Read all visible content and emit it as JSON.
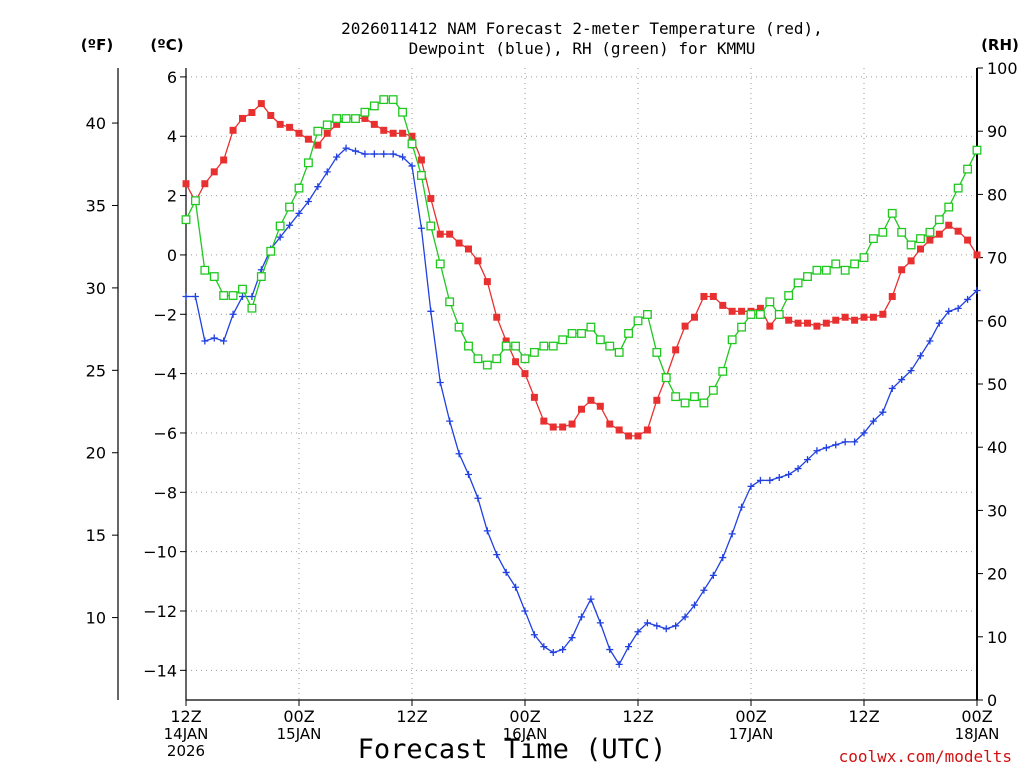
{
  "chart_data": {
    "type": "line",
    "title_lines": [
      "2026011412 NAM Forecast 2-meter Temperature (red),",
      "Dewpoint (blue), RH (green) for KMMU"
    ],
    "xlabel": "Forecast Time (UTC)",
    "credit": "coolwx.com/modelts",
    "units": {
      "fahrenheit": "(ºF)",
      "celsius": "(ºC)",
      "rh": "(RH)"
    },
    "x_range_hours": [
      0,
      84
    ],
    "ylim_celsius": [
      -15,
      6.3
    ],
    "ylim_fahrenheit": [
      5,
      43.34
    ],
    "ylim_rh": [
      0,
      100
    ],
    "grid": true,
    "x_ticks": [
      {
        "hour": 0,
        "lines": [
          "12Z",
          "14JAN",
          "2026"
        ]
      },
      {
        "hour": 12,
        "lines": [
          "00Z",
          "15JAN"
        ]
      },
      {
        "hour": 24,
        "lines": [
          "12Z"
        ]
      },
      {
        "hour": 36,
        "lines": [
          "00Z",
          "16JAN"
        ]
      },
      {
        "hour": 48,
        "lines": [
          "12Z"
        ]
      },
      {
        "hour": 60,
        "lines": [
          "00Z",
          "17JAN"
        ]
      },
      {
        "hour": 72,
        "lines": [
          "12Z"
        ]
      },
      {
        "hour": 84,
        "lines": [
          "00Z",
          "18JAN"
        ]
      }
    ],
    "y_ticks_celsius": [
      {
        "value": 6,
        "label": "6"
      },
      {
        "value": 4,
        "label": "4"
      },
      {
        "value": 2,
        "label": "2"
      },
      {
        "value": 0,
        "label": "0"
      },
      {
        "value": -2,
        "label": "−2"
      },
      {
        "value": -4,
        "label": "−4"
      },
      {
        "value": -6,
        "label": "−6"
      },
      {
        "value": -8,
        "label": "−8"
      },
      {
        "value": -10,
        "label": "−10"
      },
      {
        "value": -12,
        "label": "−12"
      },
      {
        "value": -14,
        "label": "−14"
      }
    ],
    "y_ticks_fahrenheit": [
      {
        "value": 40,
        "label": "40"
      },
      {
        "value": 35,
        "label": "35"
      },
      {
        "value": 30,
        "label": "30"
      },
      {
        "value": 25,
        "label": "25"
      },
      {
        "value": 20,
        "label": "20"
      },
      {
        "value": 15,
        "label": "15"
      },
      {
        "value": 10,
        "label": "10"
      }
    ],
    "y_ticks_rh": [
      {
        "value": 100,
        "label": "100"
      },
      {
        "value": 90,
        "label": "90"
      },
      {
        "value": 80,
        "label": "80"
      },
      {
        "value": 70,
        "label": "70"
      },
      {
        "value": 60,
        "label": "60"
      },
      {
        "value": 50,
        "label": "50"
      },
      {
        "value": 40,
        "label": "40"
      },
      {
        "value": 30,
        "label": "30"
      },
      {
        "value": 20,
        "label": "20"
      },
      {
        "value": 10,
        "label": "10"
      },
      {
        "value": 0,
        "label": "0"
      }
    ],
    "series": [
      {
        "name": "2-meter Temperature",
        "axis": "celsius",
        "color": "#e83030",
        "marker": "filled-square",
        "points": [
          [
            0,
            2.4
          ],
          [
            1,
            1.8
          ],
          [
            2,
            2.4
          ],
          [
            3,
            2.8
          ],
          [
            4,
            3.2
          ],
          [
            5,
            4.2
          ],
          [
            6,
            4.6
          ],
          [
            7,
            4.8
          ],
          [
            8,
            5.1
          ],
          [
            9,
            4.7
          ],
          [
            10,
            4.4
          ],
          [
            11,
            4.3
          ],
          [
            12,
            4.1
          ],
          [
            13,
            3.9
          ],
          [
            14,
            3.7
          ],
          [
            15,
            4.1
          ],
          [
            16,
            4.4
          ],
          [
            17,
            4.6
          ],
          [
            18,
            4.6
          ],
          [
            19,
            4.6
          ],
          [
            20,
            4.4
          ],
          [
            21,
            4.2
          ],
          [
            22,
            4.1
          ],
          [
            23,
            4.1
          ],
          [
            24,
            4.0
          ],
          [
            25,
            3.2
          ],
          [
            26,
            1.9
          ],
          [
            27,
            0.7
          ],
          [
            28,
            0.7
          ],
          [
            29,
            0.4
          ],
          [
            30,
            0.2
          ],
          [
            31,
            -0.2
          ],
          [
            32,
            -0.9
          ],
          [
            33,
            -2.1
          ],
          [
            34,
            -2.9
          ],
          [
            35,
            -3.6
          ],
          [
            36,
            -4.0
          ],
          [
            37,
            -4.8
          ],
          [
            38,
            -5.6
          ],
          [
            39,
            -5.8
          ],
          [
            40,
            -5.8
          ],
          [
            41,
            -5.7
          ],
          [
            42,
            -5.2
          ],
          [
            43,
            -4.9
          ],
          [
            44,
            -5.1
          ],
          [
            45,
            -5.7
          ],
          [
            46,
            -5.9
          ],
          [
            47,
            -6.1
          ],
          [
            48,
            -6.1
          ],
          [
            49,
            -5.9
          ],
          [
            50,
            -4.9
          ],
          [
            51,
            -4.1
          ],
          [
            52,
            -3.2
          ],
          [
            53,
            -2.4
          ],
          [
            54,
            -2.1
          ],
          [
            55,
            -1.4
          ],
          [
            56,
            -1.4
          ],
          [
            57,
            -1.7
          ],
          [
            58,
            -1.9
          ],
          [
            59,
            -1.9
          ],
          [
            60,
            -1.9
          ],
          [
            61,
            -1.8
          ],
          [
            62,
            -2.4
          ],
          [
            63,
            -2.0
          ],
          [
            64,
            -2.2
          ],
          [
            65,
            -2.3
          ],
          [
            66,
            -2.3
          ],
          [
            67,
            -2.4
          ],
          [
            68,
            -2.3
          ],
          [
            69,
            -2.2
          ],
          [
            70,
            -2.1
          ],
          [
            71,
            -2.2
          ],
          [
            72,
            -2.1
          ],
          [
            73,
            -2.1
          ],
          [
            74,
            -2.0
          ],
          [
            75,
            -1.4
          ],
          [
            76,
            -0.5
          ],
          [
            77,
            -0.2
          ],
          [
            78,
            0.2
          ],
          [
            79,
            0.5
          ],
          [
            80,
            0.7
          ],
          [
            81,
            1.0
          ],
          [
            82,
            0.8
          ],
          [
            83,
            0.5
          ],
          [
            84,
            0.0
          ]
        ]
      },
      {
        "name": "Dewpoint",
        "axis": "celsius",
        "color": "#2040e0",
        "marker": "plus",
        "points": [
          [
            0,
            -1.4
          ],
          [
            1,
            -1.4
          ],
          [
            2,
            -2.9
          ],
          [
            3,
            -2.8
          ],
          [
            4,
            -2.9
          ],
          [
            5,
            -2.0
          ],
          [
            6,
            -1.4
          ],
          [
            7,
            -1.4
          ],
          [
            8,
            -0.5
          ],
          [
            9,
            0.2
          ],
          [
            10,
            0.6
          ],
          [
            11,
            1.0
          ],
          [
            12,
            1.4
          ],
          [
            13,
            1.8
          ],
          [
            14,
            2.3
          ],
          [
            15,
            2.8
          ],
          [
            16,
            3.3
          ],
          [
            17,
            3.6
          ],
          [
            18,
            3.5
          ],
          [
            19,
            3.4
          ],
          [
            20,
            3.4
          ],
          [
            21,
            3.4
          ],
          [
            22,
            3.4
          ],
          [
            23,
            3.3
          ],
          [
            24,
            3.0
          ],
          [
            25,
            0.9
          ],
          [
            26,
            -1.9
          ],
          [
            27,
            -4.3
          ],
          [
            28,
            -5.6
          ],
          [
            29,
            -6.7
          ],
          [
            30,
            -7.4
          ],
          [
            31,
            -8.2
          ],
          [
            32,
            -9.3
          ],
          [
            33,
            -10.1
          ],
          [
            34,
            -10.7
          ],
          [
            35,
            -11.2
          ],
          [
            36,
            -12.0
          ],
          [
            37,
            -12.8
          ],
          [
            38,
            -13.2
          ],
          [
            39,
            -13.4
          ],
          [
            40,
            -13.3
          ],
          [
            41,
            -12.9
          ],
          [
            42,
            -12.2
          ],
          [
            43,
            -11.6
          ],
          [
            44,
            -12.4
          ],
          [
            45,
            -13.3
          ],
          [
            46,
            -13.8
          ],
          [
            47,
            -13.2
          ],
          [
            48,
            -12.7
          ],
          [
            49,
            -12.4
          ],
          [
            50,
            -12.5
          ],
          [
            51,
            -12.6
          ],
          [
            52,
            -12.5
          ],
          [
            53,
            -12.2
          ],
          [
            54,
            -11.8
          ],
          [
            55,
            -11.3
          ],
          [
            56,
            -10.8
          ],
          [
            57,
            -10.2
          ],
          [
            58,
            -9.4
          ],
          [
            59,
            -8.5
          ],
          [
            60,
            -7.8
          ],
          [
            61,
            -7.6
          ],
          [
            62,
            -7.6
          ],
          [
            63,
            -7.5
          ],
          [
            64,
            -7.4
          ],
          [
            65,
            -7.2
          ],
          [
            66,
            -6.9
          ],
          [
            67,
            -6.6
          ],
          [
            68,
            -6.5
          ],
          [
            69,
            -6.4
          ],
          [
            70,
            -6.3
          ],
          [
            71,
            -6.3
          ],
          [
            72,
            -6.0
          ],
          [
            73,
            -5.6
          ],
          [
            74,
            -5.3
          ],
          [
            75,
            -4.5
          ],
          [
            76,
            -4.2
          ],
          [
            77,
            -3.9
          ],
          [
            78,
            -3.4
          ],
          [
            79,
            -2.9
          ],
          [
            80,
            -2.3
          ],
          [
            81,
            -1.9
          ],
          [
            82,
            -1.8
          ],
          [
            83,
            -1.5
          ],
          [
            84,
            -1.2
          ]
        ]
      },
      {
        "name": "Relative Humidity",
        "axis": "rh",
        "color": "#20c820",
        "marker": "open-square",
        "points": [
          [
            0,
            76
          ],
          [
            1,
            79
          ],
          [
            2,
            68
          ],
          [
            3,
            67
          ],
          [
            4,
            64
          ],
          [
            5,
            64
          ],
          [
            6,
            65
          ],
          [
            7,
            62
          ],
          [
            8,
            67
          ],
          [
            9,
            71
          ],
          [
            10,
            75
          ],
          [
            11,
            78
          ],
          [
            12,
            81
          ],
          [
            13,
            85
          ],
          [
            14,
            90
          ],
          [
            15,
            91
          ],
          [
            16,
            92
          ],
          [
            17,
            92
          ],
          [
            18,
            92
          ],
          [
            19,
            93
          ],
          [
            20,
            94
          ],
          [
            21,
            95
          ],
          [
            22,
            95
          ],
          [
            23,
            93
          ],
          [
            24,
            88
          ],
          [
            25,
            83
          ],
          [
            26,
            75
          ],
          [
            27,
            69
          ],
          [
            28,
            63
          ],
          [
            29,
            59
          ],
          [
            30,
            56
          ],
          [
            31,
            54
          ],
          [
            32,
            53
          ],
          [
            33,
            54
          ],
          [
            34,
            56
          ],
          [
            35,
            56
          ],
          [
            36,
            54
          ],
          [
            37,
            55
          ],
          [
            38,
            56
          ],
          [
            39,
            56
          ],
          [
            40,
            57
          ],
          [
            41,
            58
          ],
          [
            42,
            58
          ],
          [
            43,
            59
          ],
          [
            44,
            57
          ],
          [
            45,
            56
          ],
          [
            46,
            55
          ],
          [
            47,
            58
          ],
          [
            48,
            60
          ],
          [
            49,
            61
          ],
          [
            50,
            55
          ],
          [
            51,
            51
          ],
          [
            52,
            48
          ],
          [
            53,
            47
          ],
          [
            54,
            48
          ],
          [
            55,
            47
          ],
          [
            56,
            49
          ],
          [
            57,
            52
          ],
          [
            58,
            57
          ],
          [
            59,
            59
          ],
          [
            60,
            61
          ],
          [
            61,
            61
          ],
          [
            62,
            63
          ],
          [
            63,
            61
          ],
          [
            64,
            64
          ],
          [
            65,
            66
          ],
          [
            66,
            67
          ],
          [
            67,
            68
          ],
          [
            68,
            68
          ],
          [
            69,
            69
          ],
          [
            70,
            68
          ],
          [
            71,
            69
          ],
          [
            72,
            70
          ],
          [
            73,
            73
          ],
          [
            74,
            74
          ],
          [
            75,
            77
          ],
          [
            76,
            74
          ],
          [
            77,
            72
          ],
          [
            78,
            73
          ],
          [
            79,
            74
          ],
          [
            80,
            76
          ],
          [
            81,
            78
          ],
          [
            82,
            81
          ],
          [
            83,
            84
          ],
          [
            84,
            87
          ]
        ]
      }
    ]
  }
}
